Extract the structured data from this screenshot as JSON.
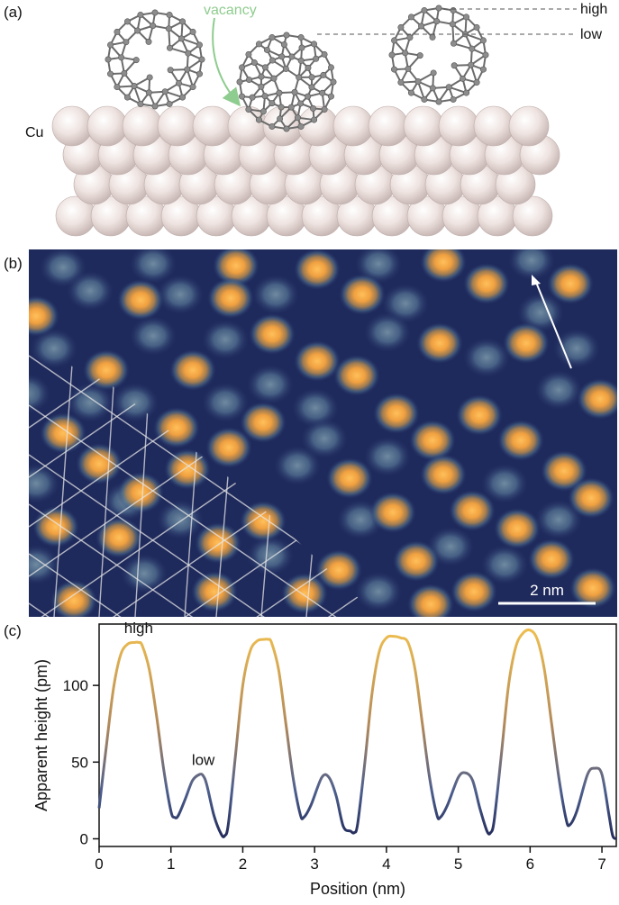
{
  "panel_a": {
    "label": "(a)",
    "substrate_label": "Cu",
    "vacancy_label": "vacancy",
    "high_label": "high",
    "low_label": "low"
  },
  "panel_b": {
    "label": "(b)",
    "scalebar_label": "2 nm"
  },
  "panel_c": {
    "label": "(c)",
    "annot_high": "high",
    "annot_low": "low"
  },
  "chart_data": {
    "type": "line",
    "title": "",
    "xlabel": "Position (nm)",
    "ylabel": "Apparent height (pm)",
    "xlim": [
      0,
      7.2
    ],
    "ylim": [
      -5,
      140
    ],
    "xticks": [
      0,
      1,
      2,
      3,
      4,
      5,
      6,
      7
    ],
    "yticks": [
      0,
      50,
      100
    ],
    "series": [
      {
        "x": [
          0.0,
          0.1,
          0.2,
          0.3,
          0.4,
          0.5,
          0.55,
          0.6,
          0.7,
          0.8,
          0.9,
          1.0,
          1.05,
          1.1,
          1.2,
          1.3,
          1.4,
          1.45,
          1.5,
          1.6,
          1.7,
          1.75,
          1.8,
          1.9,
          2.0,
          2.1,
          2.2,
          2.3,
          2.35,
          2.4,
          2.5,
          2.6,
          2.7,
          2.8,
          2.85,
          2.95,
          3.1,
          3.2,
          3.3,
          3.4,
          3.5,
          3.55,
          3.6,
          3.7,
          3.8,
          3.9,
          4.0,
          4.1,
          4.2,
          4.3,
          4.4,
          4.5,
          4.6,
          4.7,
          4.75,
          4.85,
          5.0,
          5.1,
          5.2,
          5.3,
          5.4,
          5.45,
          5.5,
          5.6,
          5.7,
          5.8,
          5.9,
          6.0,
          6.1,
          6.2,
          6.3,
          6.4,
          6.5,
          6.55,
          6.65,
          6.8,
          6.9,
          7.0,
          7.1,
          7.15,
          7.2
        ],
        "y": [
          20,
          60,
          98,
          120,
          127,
          128,
          128,
          126,
          110,
          80,
          45,
          18,
          14,
          15,
          26,
          38,
          42,
          41,
          35,
          15,
          3,
          2,
          10,
          55,
          100,
          122,
          129,
          130,
          130,
          128,
          110,
          75,
          40,
          16,
          14,
          22,
          40,
          40,
          28,
          8,
          5,
          4,
          10,
          50,
          95,
          122,
          131,
          132,
          131,
          128,
          110,
          75,
          40,
          16,
          14,
          22,
          40,
          43,
          38,
          20,
          5,
          4,
          12,
          55,
          100,
          125,
          134,
          136,
          130,
          110,
          75,
          40,
          13,
          9,
          18,
          42,
          46,
          42,
          15,
          2,
          0
        ]
      }
    ]
  }
}
